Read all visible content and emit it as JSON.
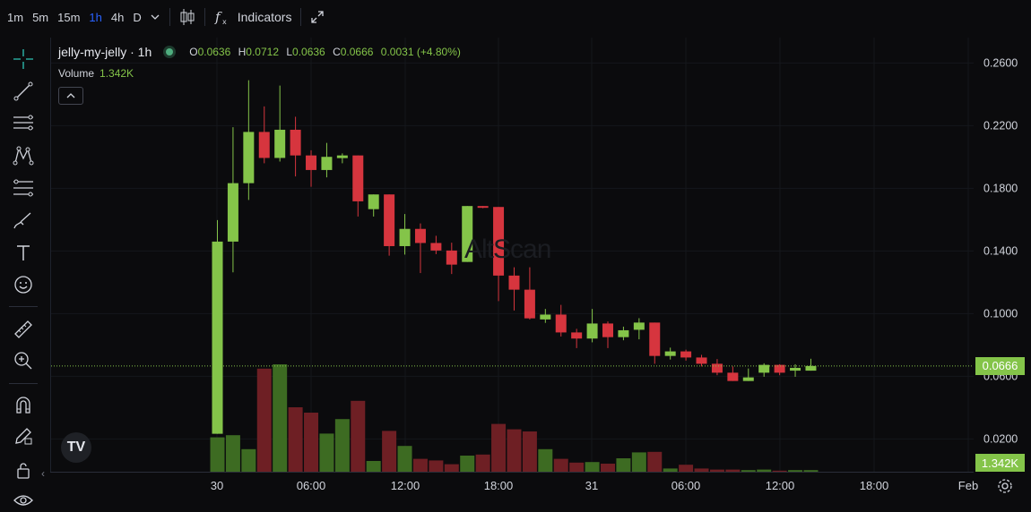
{
  "toolbar": {
    "timeframes": [
      "1m",
      "5m",
      "15m",
      "1h",
      "4h",
      "D"
    ],
    "active_timeframe": "1h",
    "indicators_label": "Indicators"
  },
  "legend": {
    "symbol": "jelly-my-jelly · 1h",
    "open_key": "O",
    "open": "0.0636",
    "high_key": "H",
    "high": "0.0712",
    "low_key": "L",
    "low": "0.0636",
    "close_key": "C",
    "close": "0.0666",
    "change": "0.0031 (+4.80%)",
    "volume_label": "Volume",
    "volume_value": "1.342K"
  },
  "watermark": "AltScan",
  "price_tag": "0.0666",
  "volume_tag": "1.342K",
  "colors": {
    "up": "#84c449",
    "down": "#d6353e",
    "up_vol": "#3d6b22",
    "down_vol": "#6e1f24",
    "accent": "#2962ff"
  },
  "chart_data": {
    "type": "candlestick",
    "y_ticks": [
      "0.2600",
      "0.2200",
      "0.1800",
      "0.1400",
      "0.1000",
      "0.0600",
      "0.0200"
    ],
    "x_ticks": [
      "30",
      "06:00",
      "12:00",
      "18:00",
      "31",
      "06:00",
      "12:00",
      "18:00",
      "Feb"
    ],
    "ylim": [
      0.0,
      0.27
    ],
    "last_price": 0.0666,
    "candles": [
      {
        "o": 0.0233,
        "h": 0.1597,
        "l": 0.0233,
        "c": 0.146
      },
      {
        "o": 0.146,
        "h": 0.219,
        "l": 0.1264,
        "c": 0.1833
      },
      {
        "o": 0.1833,
        "h": 0.249,
        "l": 0.1726,
        "c": 0.216
      },
      {
        "o": 0.216,
        "h": 0.2323,
        "l": 0.196,
        "c": 0.1994
      },
      {
        "o": 0.1994,
        "h": 0.2456,
        "l": 0.1971,
        "c": 0.2174
      },
      {
        "o": 0.2174,
        "h": 0.2257,
        "l": 0.1876,
        "c": 0.201
      },
      {
        "o": 0.201,
        "h": 0.2043,
        "l": 0.181,
        "c": 0.1917
      },
      {
        "o": 0.1917,
        "h": 0.209,
        "l": 0.187,
        "c": 0.2001
      },
      {
        "o": 0.1993,
        "h": 0.2023,
        "l": 0.196,
        "c": 0.201
      },
      {
        "o": 0.201,
        "h": 0.201,
        "l": 0.162,
        "c": 0.1717
      },
      {
        "o": 0.1667,
        "h": 0.1761,
        "l": 0.162,
        "c": 0.1761
      },
      {
        "o": 0.1761,
        "h": 0.1761,
        "l": 0.137,
        "c": 0.1431
      },
      {
        "o": 0.1431,
        "h": 0.1636,
        "l": 0.1377,
        "c": 0.1541
      },
      {
        "o": 0.1541,
        "h": 0.1576,
        "l": 0.1259,
        "c": 0.1451
      },
      {
        "o": 0.1451,
        "h": 0.1497,
        "l": 0.138,
        "c": 0.1403
      },
      {
        "o": 0.1403,
        "h": 0.1453,
        "l": 0.1253,
        "c": 0.1313
      },
      {
        "o": 0.133,
        "h": 0.1687,
        "l": 0.133,
        "c": 0.1687
      },
      {
        "o": 0.1687,
        "h": 0.1687,
        "l": 0.1673,
        "c": 0.1681
      },
      {
        "o": 0.1681,
        "h": 0.1681,
        "l": 0.108,
        "c": 0.1243
      },
      {
        "o": 0.1243,
        "h": 0.1296,
        "l": 0.102,
        "c": 0.1153
      },
      {
        "o": 0.1153,
        "h": 0.1296,
        "l": 0.0963,
        "c": 0.097
      },
      {
        "o": 0.0963,
        "h": 0.103,
        "l": 0.0941,
        "c": 0.0994
      },
      {
        "o": 0.0994,
        "h": 0.1056,
        "l": 0.0854,
        "c": 0.088
      },
      {
        "o": 0.088,
        "h": 0.0903,
        "l": 0.078,
        "c": 0.0841
      },
      {
        "o": 0.0841,
        "h": 0.103,
        "l": 0.0817,
        "c": 0.0937
      },
      {
        "o": 0.0937,
        "h": 0.095,
        "l": 0.078,
        "c": 0.085
      },
      {
        "o": 0.085,
        "h": 0.0917,
        "l": 0.083,
        "c": 0.0894
      },
      {
        "o": 0.0897,
        "h": 0.0971,
        "l": 0.0836,
        "c": 0.0943
      },
      {
        "o": 0.0943,
        "h": 0.0943,
        "l": 0.068,
        "c": 0.073
      },
      {
        "o": 0.073,
        "h": 0.0783,
        "l": 0.0707,
        "c": 0.0759
      },
      {
        "o": 0.0759,
        "h": 0.077,
        "l": 0.07,
        "c": 0.072
      },
      {
        "o": 0.072,
        "h": 0.0737,
        "l": 0.0663,
        "c": 0.068
      },
      {
        "o": 0.068,
        "h": 0.071,
        "l": 0.0607,
        "c": 0.0623
      },
      {
        "o": 0.0623,
        "h": 0.0663,
        "l": 0.057,
        "c": 0.057
      },
      {
        "o": 0.057,
        "h": 0.065,
        "l": 0.057,
        "c": 0.0593
      },
      {
        "o": 0.0623,
        "h": 0.0683,
        "l": 0.0597,
        "c": 0.0673
      },
      {
        "o": 0.0673,
        "h": 0.0677,
        "l": 0.0607,
        "c": 0.0623
      },
      {
        "o": 0.0636,
        "h": 0.0677,
        "l": 0.0597,
        "c": 0.0654
      },
      {
        "o": 0.0636,
        "h": 0.0712,
        "l": 0.0636,
        "c": 0.0666
      }
    ],
    "volume": [
      0.64,
      0.68,
      0.42,
      1.92,
      2.0,
      1.2,
      1.1,
      0.71,
      0.98,
      1.32,
      0.2,
      0.76,
      0.48,
      0.24,
      0.21,
      0.14,
      0.3,
      0.32,
      0.89,
      0.79,
      0.75,
      0.42,
      0.24,
      0.17,
      0.18,
      0.15,
      0.25,
      0.36,
      0.37,
      0.06,
      0.13,
      0.06,
      0.04,
      0.04,
      0.03,
      0.04,
      0.02,
      0.03,
      0.03
    ]
  }
}
